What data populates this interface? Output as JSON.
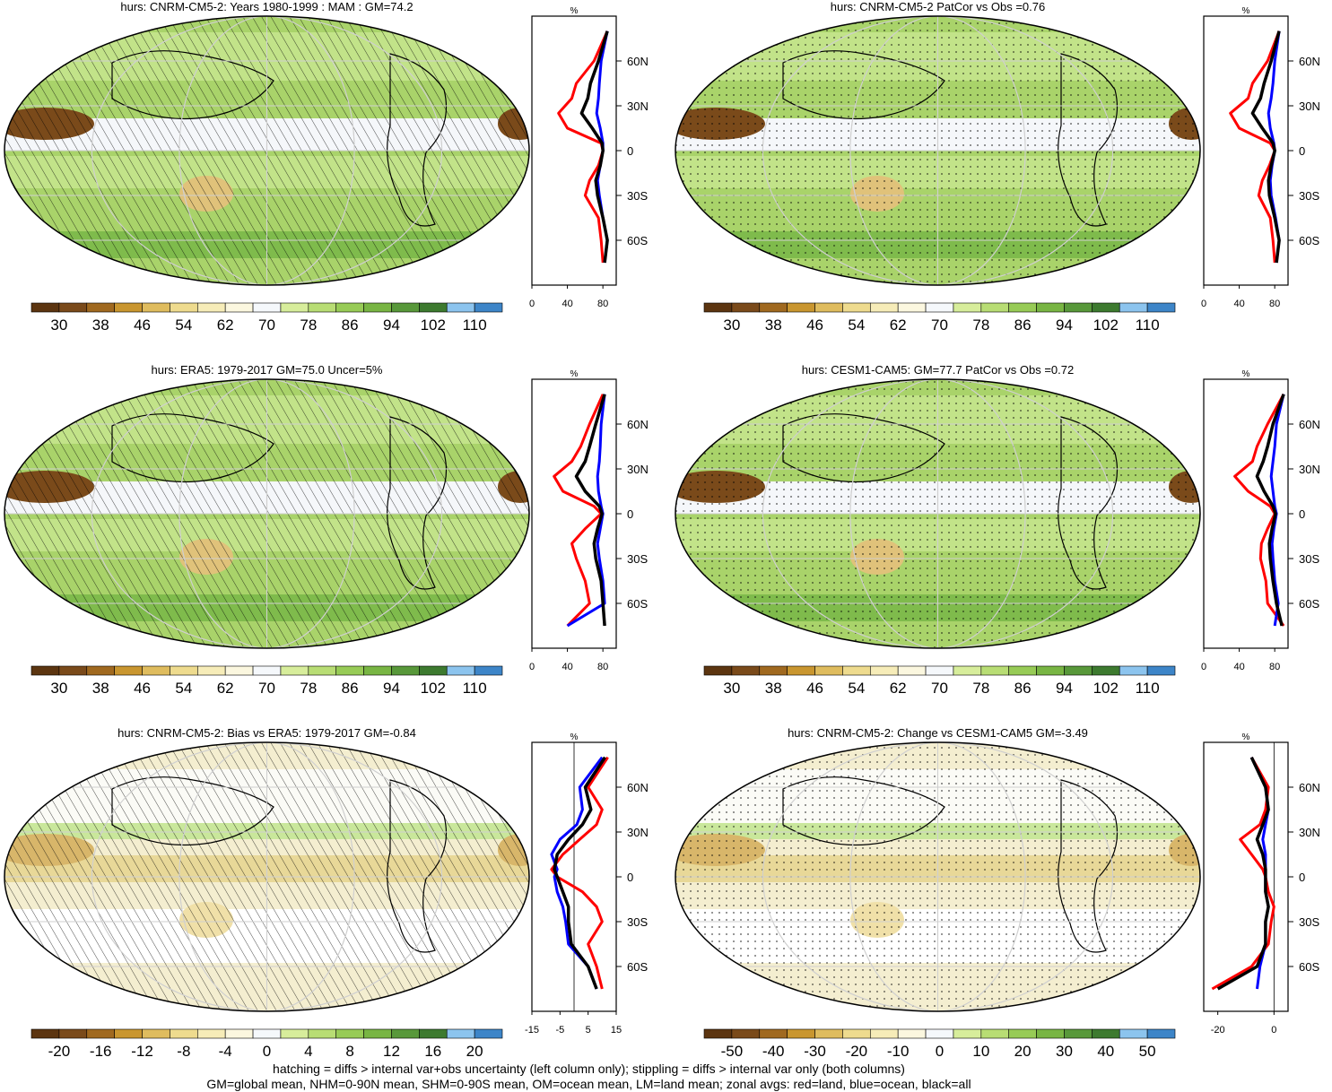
{
  "footnote": {
    "line1": "hatching = diffs > internal var+obs uncertainty (left column only); stippling = diffs > internal var only (both columns)",
    "line2": "GM=global mean, NHM=0-90N mean, SHM=0-90S mean, OM=ocean mean, LM=land mean; zonal avgs: red=land, blue=ocean, black=all"
  },
  "colors": {
    "land_line": "#ff0000",
    "ocean_line": "#0000ff",
    "all_line": "#000000"
  },
  "lat_ticks": [
    "60N",
    "30N",
    "0",
    "30S",
    "60S"
  ],
  "profile_unit": "%",
  "panels": [
    {
      "title": "hurs: CNRM-CM5-2: Years 1980-1999 : MAM : GM=74.2",
      "colorbar": {
        "labels": [
          "30",
          "38",
          "46",
          "54",
          "62",
          "70",
          "78",
          "86",
          "94",
          "102",
          "110"
        ],
        "palette": "abs"
      },
      "profile_ticks": [
        "0",
        "40",
        "80"
      ],
      "style": "hatch"
    },
    {
      "title": "hurs: CNRM-CM5-2 PatCor vs Obs =0.76",
      "colorbar": {
        "labels": [
          "30",
          "38",
          "46",
          "54",
          "62",
          "70",
          "78",
          "86",
          "94",
          "102",
          "110"
        ],
        "palette": "abs"
      },
      "profile_ticks": [
        "0",
        "40",
        "80"
      ],
      "style": "stipple"
    },
    {
      "title": "hurs: ERA5: 1979-2017 GM=75.0 Uncer=5%",
      "colorbar": {
        "labels": [
          "30",
          "38",
          "46",
          "54",
          "62",
          "70",
          "78",
          "86",
          "94",
          "102",
          "110"
        ],
        "palette": "abs"
      },
      "profile_ticks": [
        "0",
        "40",
        "80"
      ],
      "style": "hatch"
    },
    {
      "title": "hurs: CESM1-CAM5: GM=77.7 PatCor vs Obs =0.72",
      "colorbar": {
        "labels": [
          "30",
          "38",
          "46",
          "54",
          "62",
          "70",
          "78",
          "86",
          "94",
          "102",
          "110"
        ],
        "palette": "abs"
      },
      "profile_ticks": [
        "0",
        "40",
        "80"
      ],
      "style": "stipple"
    },
    {
      "title": "hurs: CNRM-CM5-2: Bias vs ERA5: 1979-2017 GM=-0.84",
      "colorbar": {
        "labels": [
          "-20",
          "-16",
          "-12",
          "-8",
          "-4",
          "0",
          "4",
          "8",
          "12",
          "16",
          "20"
        ],
        "palette": "diff"
      },
      "profile_ticks": [
        "-15",
        "-5",
        "5",
        "15"
      ],
      "style": "hatch"
    },
    {
      "title": "hurs: CNRM-CM5-2: Change vs CESM1-CAM5 GM=-3.49",
      "colorbar": {
        "labels": [
          "-50",
          "-40",
          "-30",
          "-20",
          "-10",
          "0",
          "10",
          "20",
          "30",
          "40",
          "50"
        ],
        "palette": "diff"
      },
      "profile_ticks": [
        "-20",
        "0"
      ],
      "style": "stipple"
    }
  ],
  "chart_data": [
    {
      "type": "line",
      "title": "hurs: CNRM-CM5-2: Years 1980-1999 : MAM : GM=74.2",
      "xlabel": "%",
      "xlim": [
        0,
        95
      ],
      "ylim": [
        -90,
        90
      ],
      "lat": [
        80,
        60,
        45,
        35,
        25,
        15,
        5,
        0,
        -10,
        -20,
        -30,
        -45,
        -60,
        -75
      ],
      "series": [
        {
          "name": "land",
          "values": [
            85,
            70,
            50,
            45,
            30,
            40,
            78,
            80,
            75,
            65,
            60,
            75,
            78,
            80
          ]
        },
        {
          "name": "ocean",
          "values": [
            85,
            78,
            76,
            75,
            73,
            77,
            80,
            80,
            77,
            74,
            76,
            80,
            85,
            82
          ]
        },
        {
          "name": "all",
          "values": [
            85,
            75,
            66,
            63,
            56,
            68,
            79,
            80,
            77,
            72,
            74,
            80,
            85,
            82
          ]
        }
      ]
    },
    {
      "type": "line",
      "title": "hurs: CNRM-CM5-2 PatCor vs Obs =0.76",
      "xlabel": "%",
      "xlim": [
        0,
        95
      ],
      "ylim": [
        -90,
        90
      ],
      "lat": [
        80,
        60,
        45,
        35,
        25,
        15,
        5,
        0,
        -10,
        -20,
        -30,
        -45,
        -60,
        -75
      ],
      "series": [
        {
          "name": "land",
          "values": [
            85,
            72,
            55,
            50,
            30,
            40,
            75,
            80,
            74,
            66,
            62,
            75,
            78,
            80
          ]
        },
        {
          "name": "ocean",
          "values": [
            85,
            80,
            78,
            76,
            73,
            75,
            79,
            80,
            77,
            75,
            76,
            81,
            85,
            82
          ]
        },
        {
          "name": "all",
          "values": [
            85,
            76,
            68,
            64,
            55,
            66,
            78,
            80,
            76,
            73,
            74,
            80,
            85,
            82
          ]
        }
      ]
    },
    {
      "type": "line",
      "title": "hurs: ERA5: 1979-2017 GM=75.0 Uncer=5%",
      "xlabel": "%",
      "xlim": [
        0,
        95
      ],
      "ylim": [
        -90,
        90
      ],
      "lat": [
        80,
        60,
        45,
        35,
        25,
        15,
        5,
        0,
        -10,
        -20,
        -30,
        -45,
        -60,
        -75
      ],
      "series": [
        {
          "name": "land",
          "values": [
            80,
            65,
            55,
            45,
            25,
            35,
            70,
            78,
            60,
            45,
            50,
            60,
            65,
            40
          ]
        },
        {
          "name": "ocean",
          "values": [
            82,
            78,
            77,
            76,
            74,
            75,
            78,
            80,
            77,
            74,
            76,
            80,
            82,
            40
          ]
        },
        {
          "name": "all",
          "values": [
            82,
            72,
            65,
            60,
            50,
            60,
            76,
            79,
            74,
            70,
            72,
            78,
            80,
            82
          ]
        }
      ]
    },
    {
      "type": "line",
      "title": "hurs: CESM1-CAM5: GM=77.7 PatCor vs Obs =0.72",
      "xlabel": "%",
      "xlim": [
        0,
        95
      ],
      "ylim": [
        -90,
        90
      ],
      "lat": [
        80,
        60,
        45,
        35,
        25,
        15,
        5,
        0,
        -10,
        -20,
        -30,
        -45,
        -60,
        -75
      ],
      "series": [
        {
          "name": "land",
          "values": [
            90,
            72,
            60,
            55,
            35,
            50,
            75,
            80,
            72,
            65,
            64,
            70,
            72,
            90
          ]
        },
        {
          "name": "ocean",
          "values": [
            90,
            82,
            80,
            78,
            76,
            78,
            80,
            82,
            79,
            77,
            78,
            80,
            84,
            80
          ]
        },
        {
          "name": "all",
          "values": [
            90,
            78,
            72,
            67,
            60,
            68,
            78,
            81,
            77,
            74,
            75,
            78,
            82,
            88
          ]
        }
      ]
    },
    {
      "type": "line",
      "title": "hurs: CNRM-CM5-2: Bias vs ERA5: 1979-2017 GM=-0.84",
      "xlabel": "%",
      "xlim": [
        -15,
        15
      ],
      "ylim": [
        -90,
        90
      ],
      "lat": [
        80,
        60,
        45,
        35,
        25,
        15,
        5,
        0,
        -10,
        -20,
        -30,
        -45,
        -60,
        -75
      ],
      "series": [
        {
          "name": "land",
          "values": [
            12,
            5,
            10,
            8,
            2,
            -4,
            -8,
            -6,
            3,
            8,
            10,
            5,
            8,
            10
          ]
        },
        {
          "name": "ocean",
          "values": [
            10,
            2,
            3,
            1,
            -5,
            -8,
            -6,
            -7,
            -6,
            -4,
            -3,
            -2,
            5,
            8
          ]
        },
        {
          "name": "all",
          "values": [
            11,
            4,
            6,
            3,
            -2,
            -6,
            -7,
            -6,
            -4,
            -2,
            -2,
            -1,
            5,
            8
          ]
        }
      ]
    },
    {
      "type": "line",
      "title": "hurs: CNRM-CM5-2: Change vs CESM1-CAM5 GM=-3.49",
      "xlabel": "%",
      "xlim": [
        -25,
        5
      ],
      "ylim": [
        -90,
        90
      ],
      "lat": [
        80,
        60,
        45,
        35,
        25,
        15,
        5,
        0,
        -10,
        -20,
        -30,
        -45,
        -60,
        -75
      ],
      "series": [
        {
          "name": "land",
          "values": [
            -8,
            -2,
            -3,
            -5,
            -12,
            -8,
            -4,
            -3,
            -2,
            0,
            -1,
            -2,
            -8,
            -22
          ]
        },
        {
          "name": "ocean",
          "values": [
            -8,
            -3,
            -2,
            -3,
            -4,
            -3,
            -3,
            -3,
            -3,
            -2,
            -3,
            -3,
            -5,
            -6
          ]
        },
        {
          "name": "all",
          "values": [
            -8,
            -3,
            -2,
            -4,
            -6,
            -4,
            -3,
            -3,
            -3,
            -2,
            -3,
            -3,
            -6,
            -20
          ]
        }
      ]
    }
  ]
}
